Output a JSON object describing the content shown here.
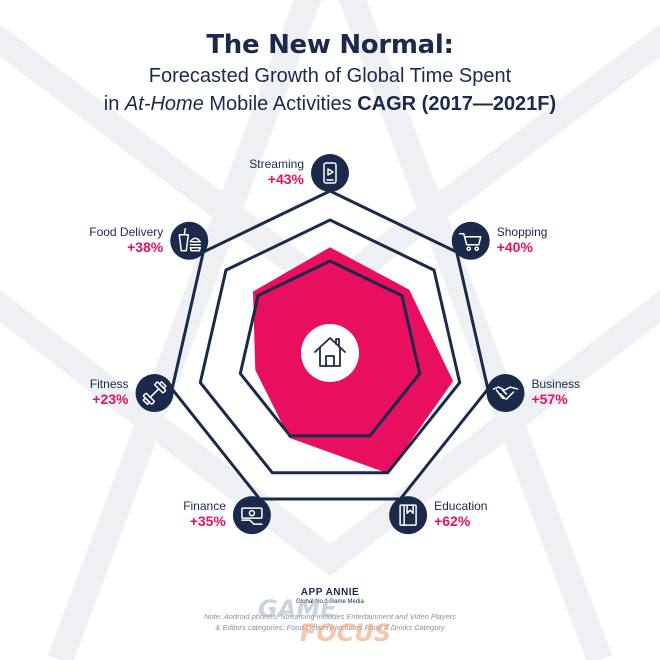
{
  "title": "The New Normal:",
  "subtitle": {
    "line1": "Forecasted Growth of Global Time Spent",
    "line2_pre": "in ",
    "line2_italic": "At-Home",
    "line2_mid": " Mobile Activities ",
    "line2_bold": "CAGR (2017—2021F)"
  },
  "chart_data": {
    "type": "radar",
    "unit": "%",
    "categories": [
      "Streaming",
      "Shopping",
      "Business",
      "Education",
      "Finance",
      "Fitness",
      "Food Delivery"
    ],
    "values": [
      43,
      40,
      57,
      62,
      35,
      23,
      38
    ],
    "value_labels": [
      "+43%",
      "+40%",
      "+57%",
      "+62%",
      "+35%",
      "+23%",
      "+38%"
    ],
    "icons": [
      "phone-play-icon",
      "cart-icon",
      "handshake-icon",
      "book-icon",
      "cash-hand-icon",
      "dumbbell-icon",
      "burger-drink-icon"
    ],
    "center_icon": "house-icon",
    "grid_rings": 3,
    "colors": {
      "fill": "#e8105e",
      "grid": "#1b2a4a",
      "icon_bg": "#1b2a4a",
      "label_value": "#e8105e"
    }
  },
  "footer": {
    "brand": "APP ANNIE",
    "brand_sub": "Global No.1 Game Media",
    "note_line1": "Note: Android phones; Streaming includes Entertainment and Video Players",
    "note_line2": "& Editors categories; Food Delivery includes Food & Drinks Category"
  },
  "watermark": {
    "line1": "GAME",
    "line2": "FOCUS"
  }
}
